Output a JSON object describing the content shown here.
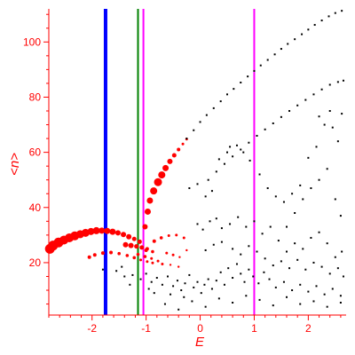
{
  "chart_data": {
    "type": "scatter",
    "title": "",
    "xlabel": "E",
    "ylabel": "<n>",
    "xlim": [
      -2.8,
      2.7
    ],
    "ylim": [
      1,
      112
    ],
    "x_ticks": [
      -2,
      -1,
      0,
      1,
      2
    ],
    "y_ticks": [
      20,
      40,
      60,
      80,
      100
    ],
    "grid": false,
    "axis_color": "#ff0000",
    "vertical_lines": [
      {
        "x": -1.75,
        "color": "#0000ff"
      },
      {
        "x": -1.15,
        "color": "#008000"
      },
      {
        "x": -1.05,
        "color": "#ff00ff"
      },
      {
        "x": 1.0,
        "color": "#ff00ff"
      }
    ],
    "series": [
      {
        "color": "#ff0000",
        "points": [
          {
            "x": -2.78,
            "y": 25.0,
            "s": 5.5
          },
          {
            "x": -2.72,
            "y": 26.2,
            "s": 5.5
          },
          {
            "x": -2.62,
            "y": 27.3,
            "s": 5.5
          },
          {
            "x": -2.52,
            "y": 28.2,
            "s": 5.0
          },
          {
            "x": -2.42,
            "y": 29.0,
            "s": 5.0
          },
          {
            "x": -2.32,
            "y": 29.7,
            "s": 5.0
          },
          {
            "x": -2.22,
            "y": 30.3,
            "s": 4.5
          },
          {
            "x": -2.12,
            "y": 30.8,
            "s": 4.5
          },
          {
            "x": -2.02,
            "y": 31.3,
            "s": 4.0
          },
          {
            "x": -1.92,
            "y": 31.6,
            "s": 4.0
          },
          {
            "x": -1.82,
            "y": 31.6,
            "s": 3.5
          },
          {
            "x": -1.72,
            "y": 31.5,
            "s": 3.5
          },
          {
            "x": -1.62,
            "y": 31.2,
            "s": 3.5
          },
          {
            "x": -1.52,
            "y": 30.8,
            "s": 3.0
          },
          {
            "x": -1.42,
            "y": 30.2,
            "s": 3.0
          },
          {
            "x": -1.32,
            "y": 29.4,
            "s": 3.0
          },
          {
            "x": -1.22,
            "y": 28.6,
            "s": 2.5
          },
          {
            "x": -1.12,
            "y": 27.6,
            "s": 2.5
          },
          {
            "x": -1.02,
            "y": 33.0,
            "s": 3.0
          },
          {
            "x": -0.97,
            "y": 38.5,
            "s": 3.5
          },
          {
            "x": -0.93,
            "y": 42.5,
            "s": 3.5
          },
          {
            "x": -0.86,
            "y": 46.0,
            "s": 4.0
          },
          {
            "x": -0.78,
            "y": 49.2,
            "s": 4.5
          },
          {
            "x": -0.71,
            "y": 51.8,
            "s": 4.0
          },
          {
            "x": -0.64,
            "y": 54.3,
            "s": 3.5
          },
          {
            "x": -0.56,
            "y": 56.7,
            "s": 3.0
          },
          {
            "x": -0.48,
            "y": 58.9,
            "s": 2.5
          },
          {
            "x": -0.4,
            "y": 61.0,
            "s": 2.0
          },
          {
            "x": -0.32,
            "y": 63.0,
            "s": 1.5
          },
          {
            "x": -0.25,
            "y": 64.8,
            "s": 1.5
          },
          {
            "x": -1.38,
            "y": 26.5,
            "s": 3.0
          },
          {
            "x": -1.28,
            "y": 26.2,
            "s": 3.0
          },
          {
            "x": -1.18,
            "y": 25.9,
            "s": 2.5
          },
          {
            "x": -1.08,
            "y": 25.5,
            "s": 2.5
          },
          {
            "x": -0.98,
            "y": 25.0,
            "s": 2.0
          },
          {
            "x": -2.05,
            "y": 22.0,
            "s": 2.0
          },
          {
            "x": -1.95,
            "y": 22.8,
            "s": 2.0
          },
          {
            "x": -1.8,
            "y": 23.5,
            "s": 2.0
          },
          {
            "x": -1.65,
            "y": 23.7,
            "s": 2.0
          },
          {
            "x": -1.5,
            "y": 23.3,
            "s": 1.8
          },
          {
            "x": -1.35,
            "y": 22.6,
            "s": 1.8
          },
          {
            "x": -1.22,
            "y": 21.8,
            "s": 1.8
          },
          {
            "x": -1.1,
            "y": 21.0,
            "s": 1.5
          },
          {
            "x": -0.98,
            "y": 20.4,
            "s": 1.5
          },
          {
            "x": -0.88,
            "y": 19.9,
            "s": 1.5
          },
          {
            "x": -1.15,
            "y": 23.0,
            "s": 1.8
          },
          {
            "x": -1.02,
            "y": 22.2,
            "s": 1.8
          },
          {
            "x": -0.9,
            "y": 21.5,
            "s": 1.5
          },
          {
            "x": -0.78,
            "y": 20.6,
            "s": 1.5
          },
          {
            "x": -1.0,
            "y": 24.5,
            "s": 2.0
          },
          {
            "x": -0.88,
            "y": 24.0,
            "s": 1.8
          },
          {
            "x": -0.85,
            "y": 27.8,
            "s": 2.0
          },
          {
            "x": -0.72,
            "y": 29.0,
            "s": 1.8
          },
          {
            "x": -0.58,
            "y": 29.8,
            "s": 1.5
          },
          {
            "x": -0.44,
            "y": 30.0,
            "s": 1.5
          },
          {
            "x": -0.3,
            "y": 29.0,
            "s": 1.5
          },
          {
            "x": -0.62,
            "y": 23.5,
            "s": 1.5
          },
          {
            "x": -0.5,
            "y": 22.8,
            "s": 1.5
          },
          {
            "x": -0.38,
            "y": 22.0,
            "s": 1.2
          },
          {
            "x": -0.7,
            "y": 19.5,
            "s": 1.5
          },
          {
            "x": -0.55,
            "y": 19.2,
            "s": 1.2
          },
          {
            "x": -0.4,
            "y": 18.5,
            "s": 1.2
          },
          {
            "x": -0.25,
            "y": 24.5,
            "s": 1.2
          }
        ]
      },
      {
        "color": "#000000",
        "points": [
          {
            "x": -0.25,
            "y": 65.0
          },
          {
            "x": -0.12,
            "y": 68.0
          },
          {
            "x": 0.0,
            "y": 71.0
          },
          {
            "x": 0.12,
            "y": 73.5
          },
          {
            "x": 0.25,
            "y": 76.0
          },
          {
            "x": 0.38,
            "y": 78.5
          },
          {
            "x": 0.5,
            "y": 81.0
          },
          {
            "x": 0.62,
            "y": 83.0
          },
          {
            "x": 0.75,
            "y": 85.3
          },
          {
            "x": 0.88,
            "y": 87.5
          },
          {
            "x": 1.0,
            "y": 89.5
          },
          {
            "x": 1.12,
            "y": 91.5
          },
          {
            "x": 1.25,
            "y": 93.5
          },
          {
            "x": 1.38,
            "y": 95.5
          },
          {
            "x": 1.5,
            "y": 97.5
          },
          {
            "x": 1.62,
            "y": 99.3
          },
          {
            "x": 1.75,
            "y": 101.0
          },
          {
            "x": 1.88,
            "y": 102.8
          },
          {
            "x": 2.0,
            "y": 104.5
          },
          {
            "x": 2.12,
            "y": 106.2
          },
          {
            "x": 2.25,
            "y": 107.8
          },
          {
            "x": 2.38,
            "y": 109.3
          },
          {
            "x": 2.5,
            "y": 110.5
          },
          {
            "x": 2.62,
            "y": 111.3
          },
          {
            "x": 0.15,
            "y": 50.0
          },
          {
            "x": 0.3,
            "y": 53.0
          },
          {
            "x": 0.45,
            "y": 55.8
          },
          {
            "x": 0.6,
            "y": 58.5
          },
          {
            "x": 0.75,
            "y": 61.0
          },
          {
            "x": 0.9,
            "y": 63.5
          },
          {
            "x": 1.05,
            "y": 66.0
          },
          {
            "x": 1.2,
            "y": 68.3
          },
          {
            "x": 1.35,
            "y": 70.5
          },
          {
            "x": 1.5,
            "y": 72.8
          },
          {
            "x": 1.65,
            "y": 75.0
          },
          {
            "x": 1.8,
            "y": 77.0
          },
          {
            "x": 1.95,
            "y": 79.0
          },
          {
            "x": 2.1,
            "y": 81.0
          },
          {
            "x": 2.25,
            "y": 82.8
          },
          {
            "x": 2.4,
            "y": 84.5
          },
          {
            "x": 2.55,
            "y": 85.5
          },
          {
            "x": 2.65,
            "y": 86.0
          },
          {
            "x": -0.2,
            "y": 47.0
          },
          {
            "x": -0.05,
            "y": 48.5
          },
          {
            "x": 0.1,
            "y": 44.0
          },
          {
            "x": 0.22,
            "y": 46.0
          },
          {
            "x": 0.35,
            "y": 57.5
          },
          {
            "x": 0.5,
            "y": 60.0
          },
          {
            "x": 0.55,
            "y": 62.0
          },
          {
            "x": 0.68,
            "y": 62.5
          },
          {
            "x": 0.8,
            "y": 60.0
          },
          {
            "x": 0.92,
            "y": 57.0
          },
          {
            "x": 1.1,
            "y": 52.0
          },
          {
            "x": 1.25,
            "y": 47.0
          },
          {
            "x": 1.4,
            "y": 44.0
          },
          {
            "x": 1.55,
            "y": 42.0
          },
          {
            "x": 1.7,
            "y": 45.0
          },
          {
            "x": 1.85,
            "y": 48.0
          },
          {
            "x": 2.0,
            "y": 58.0
          },
          {
            "x": 2.15,
            "y": 62.0
          },
          {
            "x": 2.3,
            "y": 70.0
          },
          {
            "x": 2.45,
            "y": 69.0
          },
          {
            "x": 2.55,
            "y": 64.0
          },
          {
            "x": 2.2,
            "y": 73.0
          },
          {
            "x": 2.4,
            "y": 75.0
          },
          {
            "x": 2.62,
            "y": 74.0
          },
          {
            "x": 1.6,
            "y": 33.0
          },
          {
            "x": 1.75,
            "y": 38.0
          },
          {
            "x": 1.9,
            "y": 43.0
          },
          {
            "x": 2.05,
            "y": 47.0
          },
          {
            "x": 2.2,
            "y": 50.0
          },
          {
            "x": 2.35,
            "y": 54.0
          },
          {
            "x": 2.5,
            "y": 43.0
          },
          {
            "x": 2.6,
            "y": 37.0
          },
          {
            "x": -0.05,
            "y": 34.0
          },
          {
            "x": 0.05,
            "y": 32.0
          },
          {
            "x": 0.18,
            "y": 35.0
          },
          {
            "x": 0.3,
            "y": 36.0
          },
          {
            "x": 0.4,
            "y": 32.5
          },
          {
            "x": 0.55,
            "y": 34.0
          },
          {
            "x": 0.7,
            "y": 36.5
          },
          {
            "x": 0.85,
            "y": 33.0
          },
          {
            "x": 1.0,
            "y": 35.0
          },
          {
            "x": 1.15,
            "y": 30.5
          },
          {
            "x": 1.3,
            "y": 33.0
          },
          {
            "x": 1.45,
            "y": 28.0
          },
          {
            "x": 1.6,
            "y": 24.0
          },
          {
            "x": 1.75,
            "y": 27.0
          },
          {
            "x": 1.9,
            "y": 25.0
          },
          {
            "x": 2.05,
            "y": 29.0
          },
          {
            "x": 2.2,
            "y": 31.0
          },
          {
            "x": 2.35,
            "y": 27.0
          },
          {
            "x": 2.5,
            "y": 22.0
          },
          {
            "x": 2.62,
            "y": 24.0
          },
          {
            "x": 0.1,
            "y": 24.5
          },
          {
            "x": 0.25,
            "y": 26.5
          },
          {
            "x": 0.4,
            "y": 27.5
          },
          {
            "x": 0.6,
            "y": 25.0
          },
          {
            "x": 0.75,
            "y": 23.0
          },
          {
            "x": 0.9,
            "y": 26.0
          },
          {
            "x": 1.05,
            "y": 24.0
          },
          {
            "x": 1.2,
            "y": 21.5
          },
          {
            "x": 1.35,
            "y": 19.0
          },
          {
            "x": 1.5,
            "y": 20.5
          },
          {
            "x": 1.65,
            "y": 18.0
          },
          {
            "x": 1.8,
            "y": 21.0
          },
          {
            "x": 1.95,
            "y": 17.5
          },
          {
            "x": 2.1,
            "y": 20.0
          },
          {
            "x": 2.25,
            "y": 18.5
          },
          {
            "x": 2.4,
            "y": 16.0
          },
          {
            "x": 2.55,
            "y": 18.0
          },
          {
            "x": 2.65,
            "y": 15.0
          },
          {
            "x": -1.8,
            "y": 17.5
          },
          {
            "x": -1.55,
            "y": 17.0
          },
          {
            "x": -1.4,
            "y": 15.0
          },
          {
            "x": -1.25,
            "y": 15.5
          },
          {
            "x": -1.1,
            "y": 14.0
          },
          {
            "x": -1.0,
            "y": 16.0
          },
          {
            "x": -0.9,
            "y": 13.0
          },
          {
            "x": -0.8,
            "y": 14.5
          },
          {
            "x": -0.7,
            "y": 12.0
          },
          {
            "x": -0.6,
            "y": 15.0
          },
          {
            "x": -0.5,
            "y": 11.5
          },
          {
            "x": -0.42,
            "y": 13.5
          },
          {
            "x": -0.35,
            "y": 10.0
          },
          {
            "x": -0.28,
            "y": 12.5
          },
          {
            "x": -0.2,
            "y": 15.5
          },
          {
            "x": -0.12,
            "y": 11.0
          },
          {
            "x": -0.05,
            "y": 13.0
          },
          {
            "x": 0.02,
            "y": 9.0
          },
          {
            "x": 0.08,
            "y": 12.0
          },
          {
            "x": 0.15,
            "y": 14.0
          },
          {
            "x": 0.22,
            "y": 10.5
          },
          {
            "x": 0.3,
            "y": 13.5
          },
          {
            "x": 0.38,
            "y": 16.5
          },
          {
            "x": 0.45,
            "y": 12.0
          },
          {
            "x": 0.52,
            "y": 18.0
          },
          {
            "x": 0.6,
            "y": 14.5
          },
          {
            "x": 0.68,
            "y": 19.5
          },
          {
            "x": 0.75,
            "y": 16.0
          },
          {
            "x": 0.82,
            "y": 13.0
          },
          {
            "x": 0.9,
            "y": 17.5
          },
          {
            "x": 0.98,
            "y": 15.0
          },
          {
            "x": 1.08,
            "y": 12.5
          },
          {
            "x": 1.18,
            "y": 16.5
          },
          {
            "x": 1.28,
            "y": 14.0
          },
          {
            "x": 1.4,
            "y": 11.0
          },
          {
            "x": 1.55,
            "y": 13.0
          },
          {
            "x": 1.7,
            "y": 10.0
          },
          {
            "x": 1.85,
            "y": 12.0
          },
          {
            "x": 2.0,
            "y": 9.5
          },
          {
            "x": 2.15,
            "y": 11.5
          },
          {
            "x": 2.3,
            "y": 8.5
          },
          {
            "x": 2.45,
            "y": 10.5
          },
          {
            "x": 2.6,
            "y": 8.0
          },
          {
            "x": -0.65,
            "y": 5.0
          },
          {
            "x": -0.4,
            "y": 3.0
          },
          {
            "x": -0.15,
            "y": 6.0
          },
          {
            "x": 0.1,
            "y": 4.0
          },
          {
            "x": 0.35,
            "y": 7.0
          },
          {
            "x": 0.6,
            "y": 5.5
          },
          {
            "x": 0.85,
            "y": 8.0
          },
          {
            "x": 1.1,
            "y": 6.5
          },
          {
            "x": 1.35,
            "y": 4.5
          },
          {
            "x": 1.6,
            "y": 7.5
          },
          {
            "x": 1.85,
            "y": 5.0
          },
          {
            "x": 2.1,
            "y": 6.0
          },
          {
            "x": 2.35,
            "y": 4.0
          },
          {
            "x": 2.6,
            "y": 5.5
          },
          {
            "x": -0.55,
            "y": 8.5
          },
          {
            "x": -0.3,
            "y": 7.5
          },
          {
            "x": -0.85,
            "y": 9.0
          },
          {
            "x": -1.3,
            "y": 12.0
          },
          {
            "x": -1.45,
            "y": 18.5
          },
          {
            "x": -0.95,
            "y": 10.5
          }
        ]
      }
    ]
  }
}
